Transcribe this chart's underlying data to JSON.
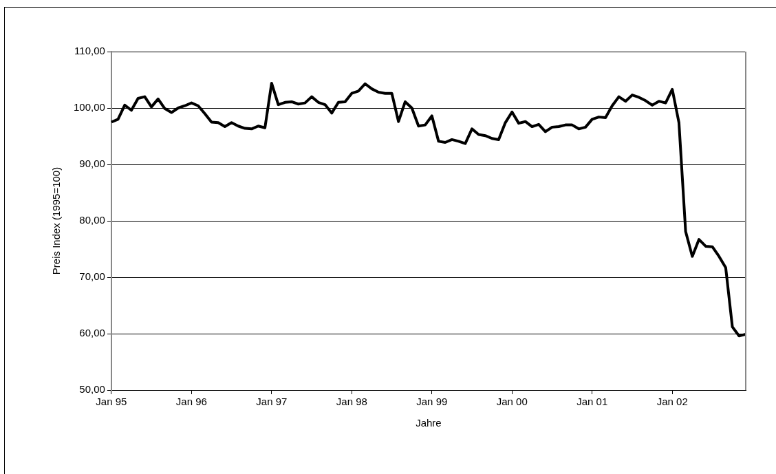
{
  "chart_data": {
    "type": "line",
    "xlabel": "Jahre",
    "ylabel": "Preis Index (1995=100)",
    "categories": [
      "Jan 95",
      null,
      null,
      null,
      null,
      null,
      null,
      null,
      null,
      null,
      null,
      null,
      "Jan 96",
      null,
      null,
      null,
      null,
      null,
      null,
      null,
      null,
      null,
      null,
      null,
      "Jan 97",
      null,
      null,
      null,
      null,
      null,
      null,
      null,
      null,
      null,
      null,
      null,
      "Jan 98",
      null,
      null,
      null,
      null,
      null,
      null,
      null,
      null,
      null,
      null,
      null,
      "Jan 99",
      null,
      null,
      null,
      null,
      null,
      null,
      null,
      null,
      null,
      null,
      null,
      "Jan 00",
      null,
      null,
      null,
      null,
      null,
      null,
      null,
      null,
      null,
      null,
      null,
      "Jan 01",
      null,
      null,
      null,
      null,
      null,
      null,
      null,
      null,
      null,
      null,
      null,
      "Jan 02",
      null,
      null,
      null,
      null,
      null,
      null,
      null,
      null,
      null,
      null,
      null
    ],
    "values": [
      97.5,
      98,
      100.5,
      99.6,
      101.7,
      102,
      100.2,
      101.6,
      99.9,
      99.2,
      100,
      100.4,
      100.9,
      100.4,
      99,
      97.5,
      97.4,
      96.7,
      97.4,
      96.8,
      96.4,
      96.3,
      96.8,
      96.5,
      104.4,
      100.6,
      101,
      101.1,
      100.7,
      100.9,
      102,
      101,
      100.6,
      99.1,
      101,
      101.1,
      102.6,
      103,
      104.3,
      103.4,
      102.8,
      102.6,
      102.6,
      97.6,
      101.1,
      100,
      96.8,
      97,
      98.6,
      94.1,
      93.9,
      94.4,
      94.1,
      93.7,
      96.3,
      95.3,
      95.1,
      94.6,
      94.4,
      97.4,
      99.3,
      97.3,
      97.6,
      96.7,
      97.1,
      95.8,
      96.6,
      96.7,
      97,
      97,
      96.3,
      96.6,
      98,
      98.4,
      98.3,
      100.4,
      102,
      101.2,
      102.3,
      101.9,
      101.3,
      100.5,
      101.2,
      100.9,
      103.3,
      97.4,
      78.1,
      73.7,
      76.7,
      75.5,
      75.4,
      73.7,
      71.7,
      61.2,
      59.6,
      59.9
    ],
    "color": "#000000",
    "marker": "none",
    "ylim": [
      50,
      110
    ],
    "yticks": [
      {
        "value": 50,
        "label": "50,00"
      },
      {
        "value": 60,
        "label": "60,00"
      },
      {
        "value": 70,
        "label": "70,00"
      },
      {
        "value": 80,
        "label": "80,00"
      },
      {
        "value": 90,
        "label": "90,00"
      },
      {
        "value": 100,
        "label": "100,00"
      },
      {
        "value": 110,
        "label": "110,00"
      }
    ],
    "grid": "y"
  }
}
